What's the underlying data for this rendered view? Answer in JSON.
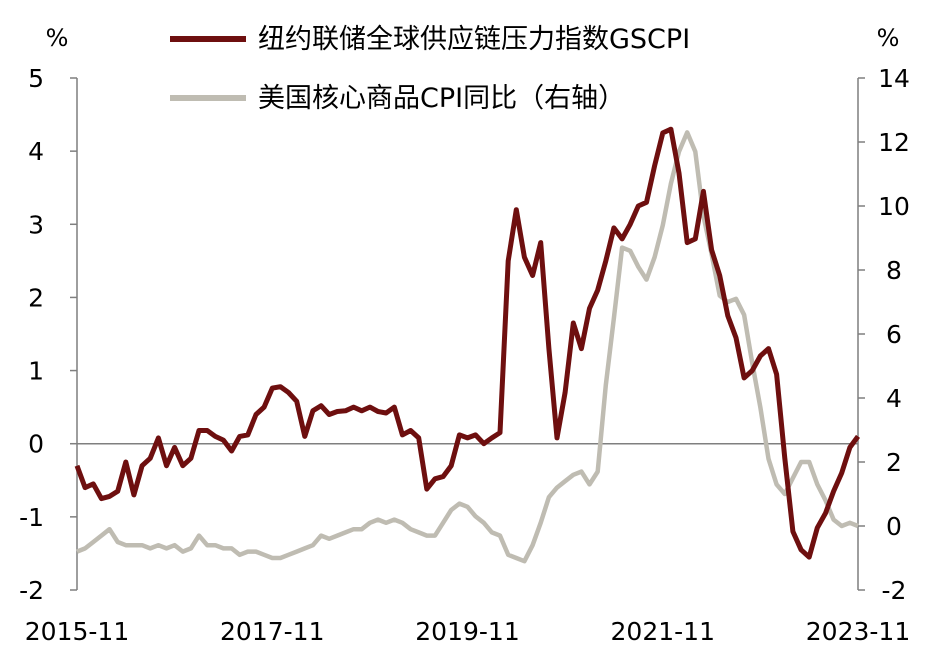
{
  "chart_data": {
    "type": "line",
    "left_axis_unit": "%",
    "right_axis_unit": "%",
    "left_ylim": [
      -2,
      5
    ],
    "right_ylim": [
      -2,
      14
    ],
    "left_ticks": [
      "5",
      "4",
      "3",
      "2",
      "1",
      "0",
      "-1",
      "-2"
    ],
    "right_ticks": [
      "14",
      "12",
      "10",
      "8",
      "6",
      "4",
      "2",
      "0",
      "-2"
    ],
    "x_tick_labels": [
      "2015-11",
      "2017-11",
      "2019-11",
      "2021-11",
      "2023-11"
    ],
    "legend_placement": "top-center",
    "grid": false,
    "colors": {
      "gscpi": "#6e0f0f",
      "core_goods_cpi": "#bfbcb2",
      "axis": "#7f7f7f"
    },
    "series": [
      {
        "name": "纽约联储全球供应链压力指数GSCPI",
        "axis": "left",
        "points": [
          [
            "2015-11",
            -0.3
          ],
          [
            "2015-12",
            -0.6
          ],
          [
            "2016-01",
            -0.55
          ],
          [
            "2016-02",
            -0.75
          ],
          [
            "2016-03",
            -0.72
          ],
          [
            "2016-04",
            -0.65
          ],
          [
            "2016-05",
            -0.25
          ],
          [
            "2016-06",
            -0.7
          ],
          [
            "2016-07",
            -0.3
          ],
          [
            "2016-08",
            -0.2
          ],
          [
            "2016-09",
            0.08
          ],
          [
            "2016-10",
            -0.3
          ],
          [
            "2016-11",
            -0.05
          ],
          [
            "2016-12",
            -0.3
          ],
          [
            "2017-01",
            -0.2
          ],
          [
            "2017-02",
            0.18
          ],
          [
            "2017-03",
            0.18
          ],
          [
            "2017-04",
            0.1
          ],
          [
            "2017-05",
            0.05
          ],
          [
            "2017-06",
            -0.1
          ],
          [
            "2017-07",
            0.1
          ],
          [
            "2017-08",
            0.12
          ],
          [
            "2017-09",
            0.4
          ],
          [
            "2017-10",
            0.5
          ],
          [
            "2017-11",
            0.76
          ],
          [
            "2017-12",
            0.78
          ],
          [
            "2018-01",
            0.7
          ],
          [
            "2018-02",
            0.58
          ],
          [
            "2018-03",
            0.1
          ],
          [
            "2018-04",
            0.45
          ],
          [
            "2018-05",
            0.52
          ],
          [
            "2018-06",
            0.4
          ],
          [
            "2018-07",
            0.44
          ],
          [
            "2018-08",
            0.45
          ],
          [
            "2018-09",
            0.5
          ],
          [
            "2018-10",
            0.45
          ],
          [
            "2018-11",
            0.5
          ],
          [
            "2018-12",
            0.44
          ],
          [
            "2019-01",
            0.42
          ],
          [
            "2019-02",
            0.5
          ],
          [
            "2019-03",
            0.12
          ],
          [
            "2019-04",
            0.18
          ],
          [
            "2019-05",
            0.08
          ],
          [
            "2019-06",
            -0.62
          ],
          [
            "2019-07",
            -0.48
          ],
          [
            "2019-08",
            -0.45
          ],
          [
            "2019-09",
            -0.3
          ],
          [
            "2019-10",
            0.12
          ],
          [
            "2019-11",
            0.08
          ],
          [
            "2019-12",
            0.12
          ],
          [
            "2020-01",
            0.0
          ],
          [
            "2020-02",
            0.08
          ],
          [
            "2020-03",
            0.15
          ],
          [
            "2020-04",
            2.5
          ],
          [
            "2020-05",
            3.2
          ],
          [
            "2020-06",
            2.55
          ],
          [
            "2020-07",
            2.3
          ],
          [
            "2020-08",
            2.75
          ],
          [
            "2020-09",
            1.3
          ],
          [
            "2020-10",
            0.08
          ],
          [
            "2020-11",
            0.7
          ],
          [
            "2020-12",
            1.65
          ],
          [
            "2021-01",
            1.3
          ],
          [
            "2021-02",
            1.85
          ],
          [
            "2021-03",
            2.1
          ],
          [
            "2021-04",
            2.5
          ],
          [
            "2021-05",
            2.95
          ],
          [
            "2021-06",
            2.8
          ],
          [
            "2021-07",
            3.0
          ],
          [
            "2021-08",
            3.25
          ],
          [
            "2021-09",
            3.3
          ],
          [
            "2021-10",
            3.8
          ],
          [
            "2021-11",
            4.25
          ],
          [
            "2021-12",
            4.3
          ],
          [
            "2022-01",
            3.7
          ],
          [
            "2022-02",
            2.75
          ],
          [
            "2022-03",
            2.8
          ],
          [
            "2022-04",
            3.45
          ],
          [
            "2022-05",
            2.65
          ],
          [
            "2022-06",
            2.3
          ],
          [
            "2022-07",
            1.75
          ],
          [
            "2022-08",
            1.45
          ],
          [
            "2022-09",
            0.9
          ],
          [
            "2022-10",
            1.0
          ],
          [
            "2022-11",
            1.2
          ],
          [
            "2022-12",
            1.3
          ],
          [
            "2023-01",
            0.95
          ],
          [
            "2023-02",
            -0.2
          ],
          [
            "2023-03",
            -1.2
          ],
          [
            "2023-04",
            -1.45
          ],
          [
            "2023-05",
            -1.55
          ],
          [
            "2023-06",
            -1.15
          ],
          [
            "2023-07",
            -0.95
          ],
          [
            "2023-08",
            -0.65
          ],
          [
            "2023-09",
            -0.4
          ],
          [
            "2023-10",
            -0.05
          ],
          [
            "2023-11",
            0.1
          ]
        ]
      },
      {
        "name": "美国核心商品CPI同比（右轴）",
        "axis": "right",
        "points": [
          [
            "2015-11",
            -0.8
          ],
          [
            "2015-12",
            -0.7
          ],
          [
            "2016-01",
            -0.5
          ],
          [
            "2016-02",
            -0.3
          ],
          [
            "2016-03",
            -0.1
          ],
          [
            "2016-04",
            -0.5
          ],
          [
            "2016-05",
            -0.6
          ],
          [
            "2016-06",
            -0.6
          ],
          [
            "2016-07",
            -0.6
          ],
          [
            "2016-08",
            -0.7
          ],
          [
            "2016-09",
            -0.6
          ],
          [
            "2016-10",
            -0.7
          ],
          [
            "2016-11",
            -0.6
          ],
          [
            "2016-12",
            -0.8
          ],
          [
            "2017-01",
            -0.7
          ],
          [
            "2017-02",
            -0.3
          ],
          [
            "2017-03",
            -0.6
          ],
          [
            "2017-04",
            -0.6
          ],
          [
            "2017-05",
            -0.7
          ],
          [
            "2017-06",
            -0.7
          ],
          [
            "2017-07",
            -0.9
          ],
          [
            "2017-08",
            -0.8
          ],
          [
            "2017-09",
            -0.8
          ],
          [
            "2017-10",
            -0.9
          ],
          [
            "2017-11",
            -1.0
          ],
          [
            "2017-12",
            -1.0
          ],
          [
            "2018-01",
            -0.9
          ],
          [
            "2018-02",
            -0.8
          ],
          [
            "2018-03",
            -0.7
          ],
          [
            "2018-04",
            -0.6
          ],
          [
            "2018-05",
            -0.3
          ],
          [
            "2018-06",
            -0.4
          ],
          [
            "2018-07",
            -0.3
          ],
          [
            "2018-08",
            -0.2
          ],
          [
            "2018-09",
            -0.1
          ],
          [
            "2018-10",
            -0.1
          ],
          [
            "2018-11",
            0.1
          ],
          [
            "2018-12",
            0.2
          ],
          [
            "2019-01",
            0.1
          ],
          [
            "2019-02",
            0.2
          ],
          [
            "2019-03",
            0.1
          ],
          [
            "2019-04",
            -0.1
          ],
          [
            "2019-05",
            -0.2
          ],
          [
            "2019-06",
            -0.3
          ],
          [
            "2019-07",
            -0.3
          ],
          [
            "2019-08",
            0.1
          ],
          [
            "2019-09",
            0.5
          ],
          [
            "2019-10",
            0.7
          ],
          [
            "2019-11",
            0.6
          ],
          [
            "2019-12",
            0.3
          ],
          [
            "2020-01",
            0.1
          ],
          [
            "2020-02",
            -0.2
          ],
          [
            "2020-03",
            -0.3
          ],
          [
            "2020-04",
            -0.9
          ],
          [
            "2020-05",
            -1.0
          ],
          [
            "2020-06",
            -1.1
          ],
          [
            "2020-07",
            -0.6
          ],
          [
            "2020-08",
            0.1
          ],
          [
            "2020-09",
            0.9
          ],
          [
            "2020-10",
            1.2
          ],
          [
            "2020-11",
            1.4
          ],
          [
            "2020-12",
            1.6
          ],
          [
            "2021-01",
            1.7
          ],
          [
            "2021-02",
            1.3
          ],
          [
            "2021-03",
            1.7
          ],
          [
            "2021-04",
            4.4
          ],
          [
            "2021-05",
            6.5
          ],
          [
            "2021-06",
            8.7
          ],
          [
            "2021-07",
            8.6
          ],
          [
            "2021-08",
            8.1
          ],
          [
            "2021-09",
            7.7
          ],
          [
            "2021-10",
            8.4
          ],
          [
            "2021-11",
            9.4
          ],
          [
            "2021-12",
            10.7
          ],
          [
            "2022-01",
            11.7
          ],
          [
            "2022-02",
            12.3
          ],
          [
            "2022-03",
            11.7
          ],
          [
            "2022-04",
            9.7
          ],
          [
            "2022-05",
            8.5
          ],
          [
            "2022-06",
            7.2
          ],
          [
            "2022-07",
            7.0
          ],
          [
            "2022-08",
            7.1
          ],
          [
            "2022-09",
            6.6
          ],
          [
            "2022-10",
            5.1
          ],
          [
            "2022-11",
            3.7
          ],
          [
            "2022-12",
            2.1
          ],
          [
            "2023-01",
            1.3
          ],
          [
            "2023-02",
            1.0
          ],
          [
            "2023-03",
            1.5
          ],
          [
            "2023-04",
            2.0
          ],
          [
            "2023-05",
            2.0
          ],
          [
            "2023-06",
            1.3
          ],
          [
            "2023-07",
            0.8
          ],
          [
            "2023-08",
            0.2
          ],
          [
            "2023-09",
            0.0
          ],
          [
            "2023-10",
            0.1
          ],
          [
            "2023-11",
            0.0
          ]
        ]
      }
    ]
  }
}
